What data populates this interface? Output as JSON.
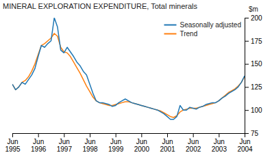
{
  "chart_data": {
    "type": "line",
    "title": "MINERAL EXPLORATION EXPENDITURE, Total minerals",
    "ylabel": "$m",
    "categories": [
      "Jun\n1995",
      null,
      null,
      null,
      null,
      null,
      null,
      null,
      "Jun\n1996",
      null,
      null,
      null,
      null,
      null,
      null,
      null,
      "Jun\n1997",
      null,
      null,
      null,
      null,
      null,
      null,
      null,
      "Jun\n1998",
      null,
      null,
      null,
      null,
      null,
      null,
      null,
      "Jun\n1999",
      null,
      null,
      null,
      null,
      null,
      null,
      null,
      "Jun\n2000",
      null,
      null,
      null,
      null,
      null,
      null,
      null,
      "Jun\n2001",
      null,
      null,
      null,
      null,
      null,
      null,
      null,
      "Jun\n2002",
      null,
      null,
      null,
      null,
      null,
      null,
      null,
      "Jun\n2003",
      null,
      null,
      null,
      null,
      null,
      null,
      null,
      "Jun\n2004"
    ],
    "series": [
      {
        "name": "Seasonally adjusted",
        "values": [
          128,
          122,
          125,
          130,
          128,
          133,
          138,
          145,
          158,
          170,
          168,
          172,
          175,
          200,
          190,
          165,
          162,
          168,
          163,
          158,
          152,
          148,
          142,
          138,
          128,
          118,
          110,
          108,
          108,
          107,
          106,
          104,
          105,
          108,
          110,
          112,
          110,
          108,
          107,
          106,
          105,
          104,
          103,
          102,
          101,
          100,
          98,
          96,
          93,
          90,
          90,
          93,
          105,
          100,
          100,
          103,
          102,
          101,
          103,
          104,
          106,
          107,
          108,
          108,
          110,
          113,
          115,
          118,
          120,
          122,
          125,
          130,
          137
        ]
      },
      {
        "name": "Trend",
        "values": [
          128,
          122,
          125,
          130,
          132,
          136,
          142,
          150,
          160,
          170,
          172,
          175,
          178,
          183,
          180,
          168,
          163,
          162,
          158,
          152,
          146,
          140,
          133,
          126,
          120,
          114,
          110,
          108,
          107,
          106,
          105,
          105,
          106,
          107,
          108,
          109,
          109,
          108,
          107,
          106,
          105,
          104,
          103,
          102,
          101,
          100,
          99,
          97,
          95,
          93,
          92,
          94,
          98,
          100,
          101,
          102,
          102,
          102,
          103,
          104,
          105,
          106,
          107,
          108,
          110,
          113,
          116,
          119,
          121,
          123,
          126,
          130,
          136
        ]
      }
    ],
    "ylim": [
      75,
      200
    ],
    "yticks": [
      75,
      100,
      125,
      150,
      175,
      200
    ],
    "grid": false,
    "legend": "upper right"
  }
}
